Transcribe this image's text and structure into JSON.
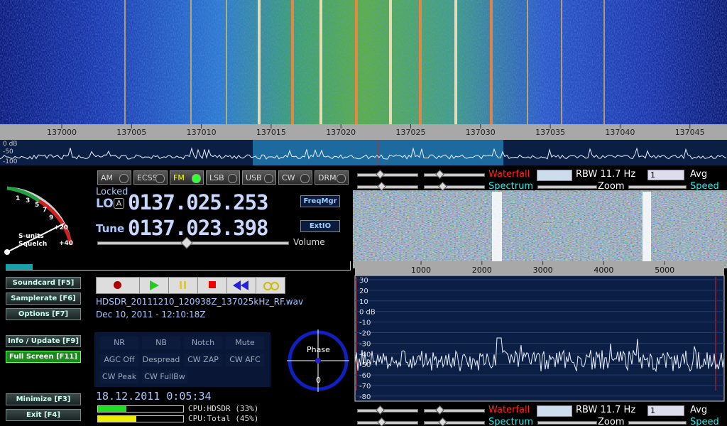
{
  "main_axis": {
    "labels": [
      137000,
      137005,
      137010,
      137015,
      137020,
      137025,
      137030,
      137035,
      137040,
      137045
    ],
    "db_labels": [
      "0 dB",
      "-50",
      "-100"
    ]
  },
  "modes": [
    "AM",
    "ECSS",
    "FM",
    "LSB",
    "USB",
    "CW",
    "DRM"
  ],
  "tuning": {
    "locked": "Locked",
    "lo": "LO",
    "lo_badge": "A",
    "lo_freq": "0137.025.253",
    "tune": "Tune",
    "tune_freq": "0137.023.398",
    "freqmgr": "FreqMgr",
    "extio": "ExtIO",
    "volume": "Volume"
  },
  "smeter": {
    "scale": [
      "1",
      "3",
      "5",
      "7",
      "9",
      "+20",
      "+40"
    ],
    "units": "S-units",
    "squelch": "Squelch"
  },
  "side_buttons": [
    "Soundcard [F5]",
    "Samplerate [F6]",
    "Options [F7]",
    "Info / Update [F9]",
    "Full Screen [F11]",
    "Minimize [F3]",
    "Exit [F4]"
  ],
  "recording": {
    "file": "HDSDR_20111210_120938Z_137025kHz_RF.wav",
    "date": "Dec 10, 2011 - 12:10:18Z"
  },
  "dsp": [
    "NR",
    "NB",
    "Notch",
    "Mute",
    "AGC Off",
    "Despread",
    "CW ZAP",
    "CW AFC",
    "CW Peak",
    "CW FullBw"
  ],
  "phase": {
    "label": "Phase",
    "value": 0
  },
  "status": {
    "time": "18.12.2011 0:05:34",
    "cpu_hdsdr": "CPU:HDSDR (33%)",
    "cpu_total": "CPU:Total (45%)"
  },
  "af_controls": {
    "waterfall": "Waterfall",
    "rbw": "RBW 11.7 Hz",
    "avg_value": "1",
    "avg": "Avg",
    "spectrum": "Spectrum",
    "zoom": "Zoom",
    "speed": "Speed"
  },
  "af_axis": {
    "labels": [
      1000,
      2000,
      3000,
      4000,
      5000
    ],
    "db_labels": [
      "30",
      "20",
      "10",
      "0 dB",
      "-10",
      "-20",
      "-30",
      "-40",
      "-50",
      "-60",
      "-70",
      "-80"
    ]
  }
}
